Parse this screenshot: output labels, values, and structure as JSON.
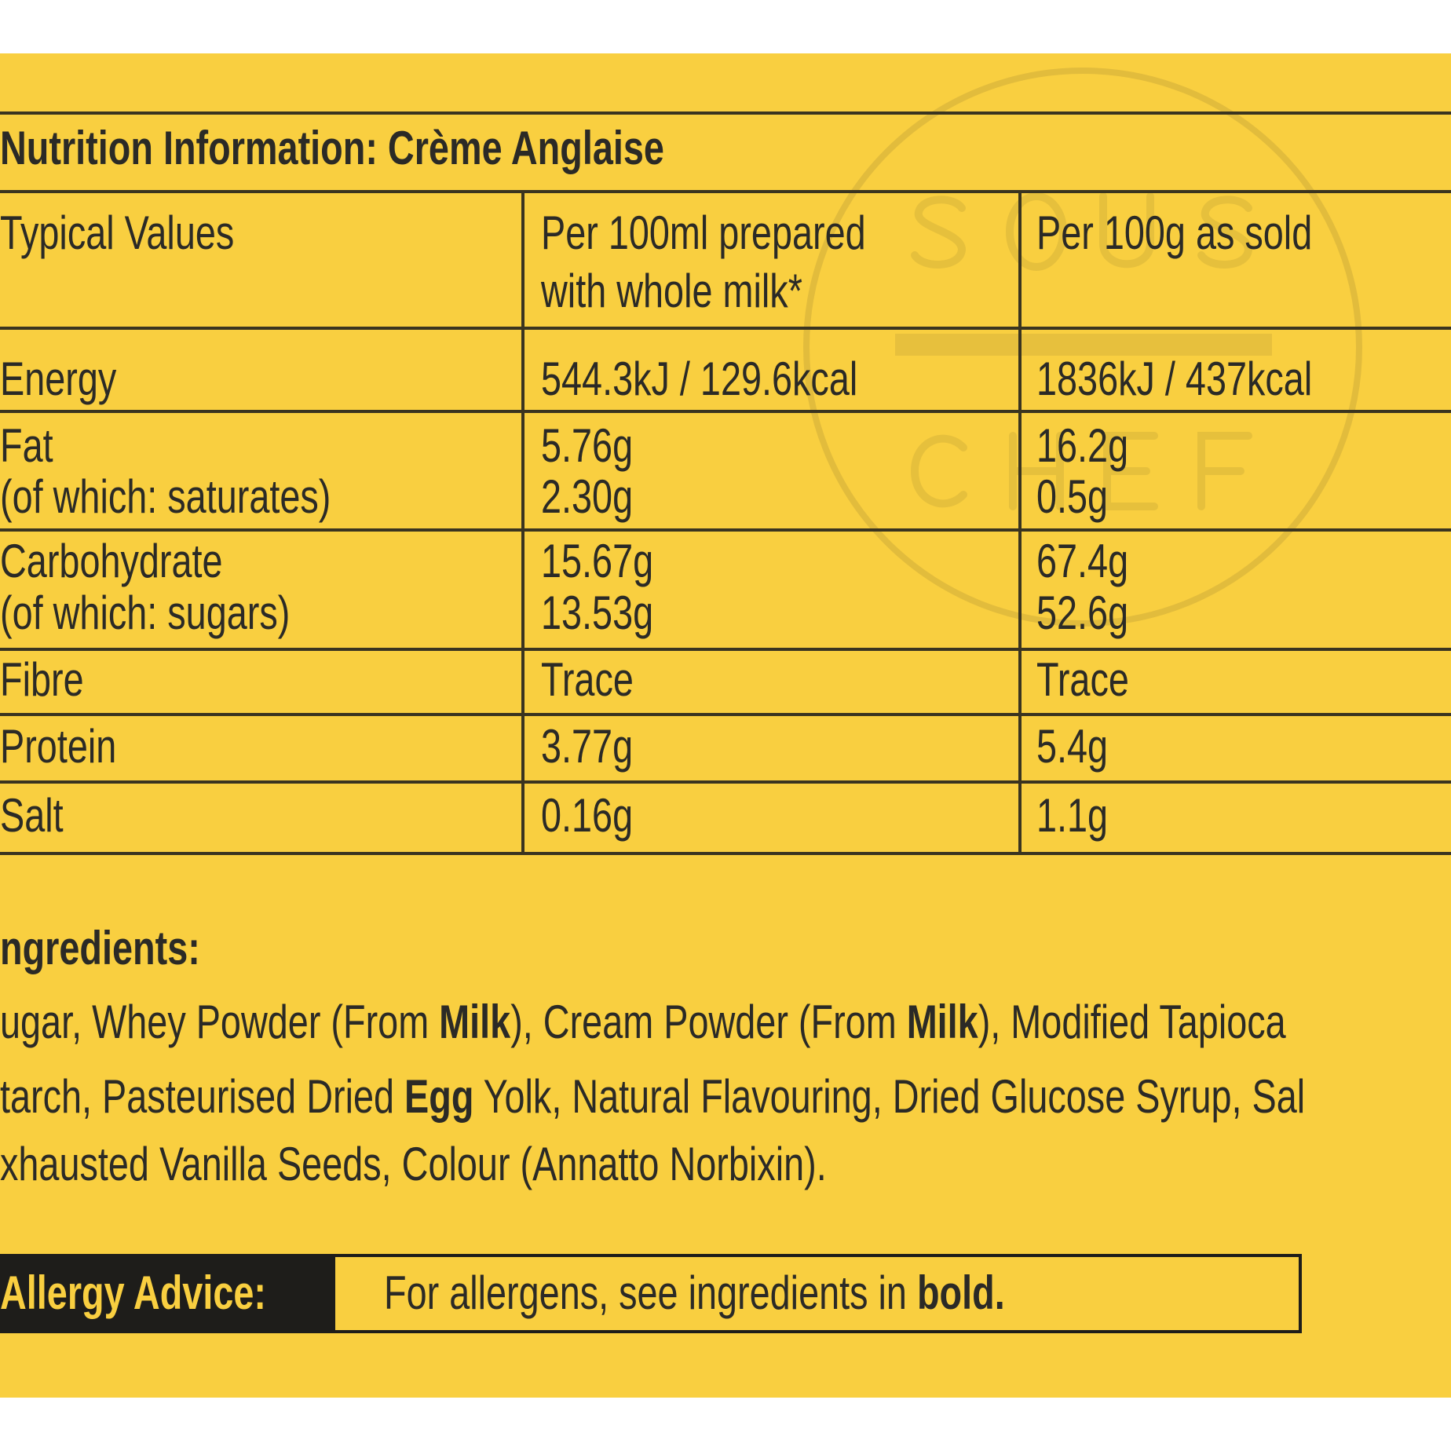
{
  "watermark": {
    "top": "SOUS",
    "bottom": "CHEF"
  },
  "title": "Nutrition Information: Crème Anglaise",
  "table": {
    "headers": [
      "Typical Values",
      [
        "Per 100ml prepared",
        "with whole milk*"
      ],
      "Per 100g as sold"
    ],
    "rows": [
      {
        "label": [
          "Energy"
        ],
        "per100ml": [
          "544.3kJ / 129.6kcal"
        ],
        "per100g": [
          "1836kJ / 437kcal"
        ]
      },
      {
        "label": [
          "Fat",
          "(of which: saturates)"
        ],
        "per100ml": [
          "5.76g",
          "2.30g"
        ],
        "per100g": [
          "16.2g",
          "0.5g"
        ]
      },
      {
        "label": [
          "Carbohydrate",
          "(of which: sugars)"
        ],
        "per100ml": [
          "15.67g",
          "13.53g"
        ],
        "per100g": [
          "67.4g",
          "52.6g"
        ]
      },
      {
        "label": [
          "Fibre"
        ],
        "per100ml": [
          "Trace"
        ],
        "per100g": [
          "Trace"
        ]
      },
      {
        "label": [
          "Protein"
        ],
        "per100ml": [
          "3.77g"
        ],
        "per100g": [
          "5.4g"
        ]
      },
      {
        "label": [
          "Salt"
        ],
        "per100ml": [
          "0.16g"
        ],
        "per100g": [
          "1.1g"
        ]
      }
    ]
  },
  "ingredients": {
    "heading": "ngredients:",
    "lines": [
      [
        {
          "text": "ugar, Whey Powder (From "
        },
        {
          "text": "Milk",
          "bold": true
        },
        {
          "text": "), Cream Powder (From "
        },
        {
          "text": "Milk",
          "bold": true
        },
        {
          "text": "), Modified Tapioca"
        }
      ],
      [
        {
          "text": "tarch, Pasteurised Dried "
        },
        {
          "text": "Egg",
          "bold": true
        },
        {
          "text": " Yolk, Natural Flavouring, Dried Glucose Syrup, Sal"
        }
      ],
      [
        {
          "text": "xhausted Vanilla Seeds, Colour (Annatto Norbixin)."
        }
      ]
    ]
  },
  "allergy": {
    "label": "Allergy Advice:",
    "text": "For allergens, see ingredients in ",
    "bold_text": "bold."
  },
  "colors": {
    "background": "#f9cf40",
    "text": "#2b2a26",
    "rule": "#3a3420"
  }
}
